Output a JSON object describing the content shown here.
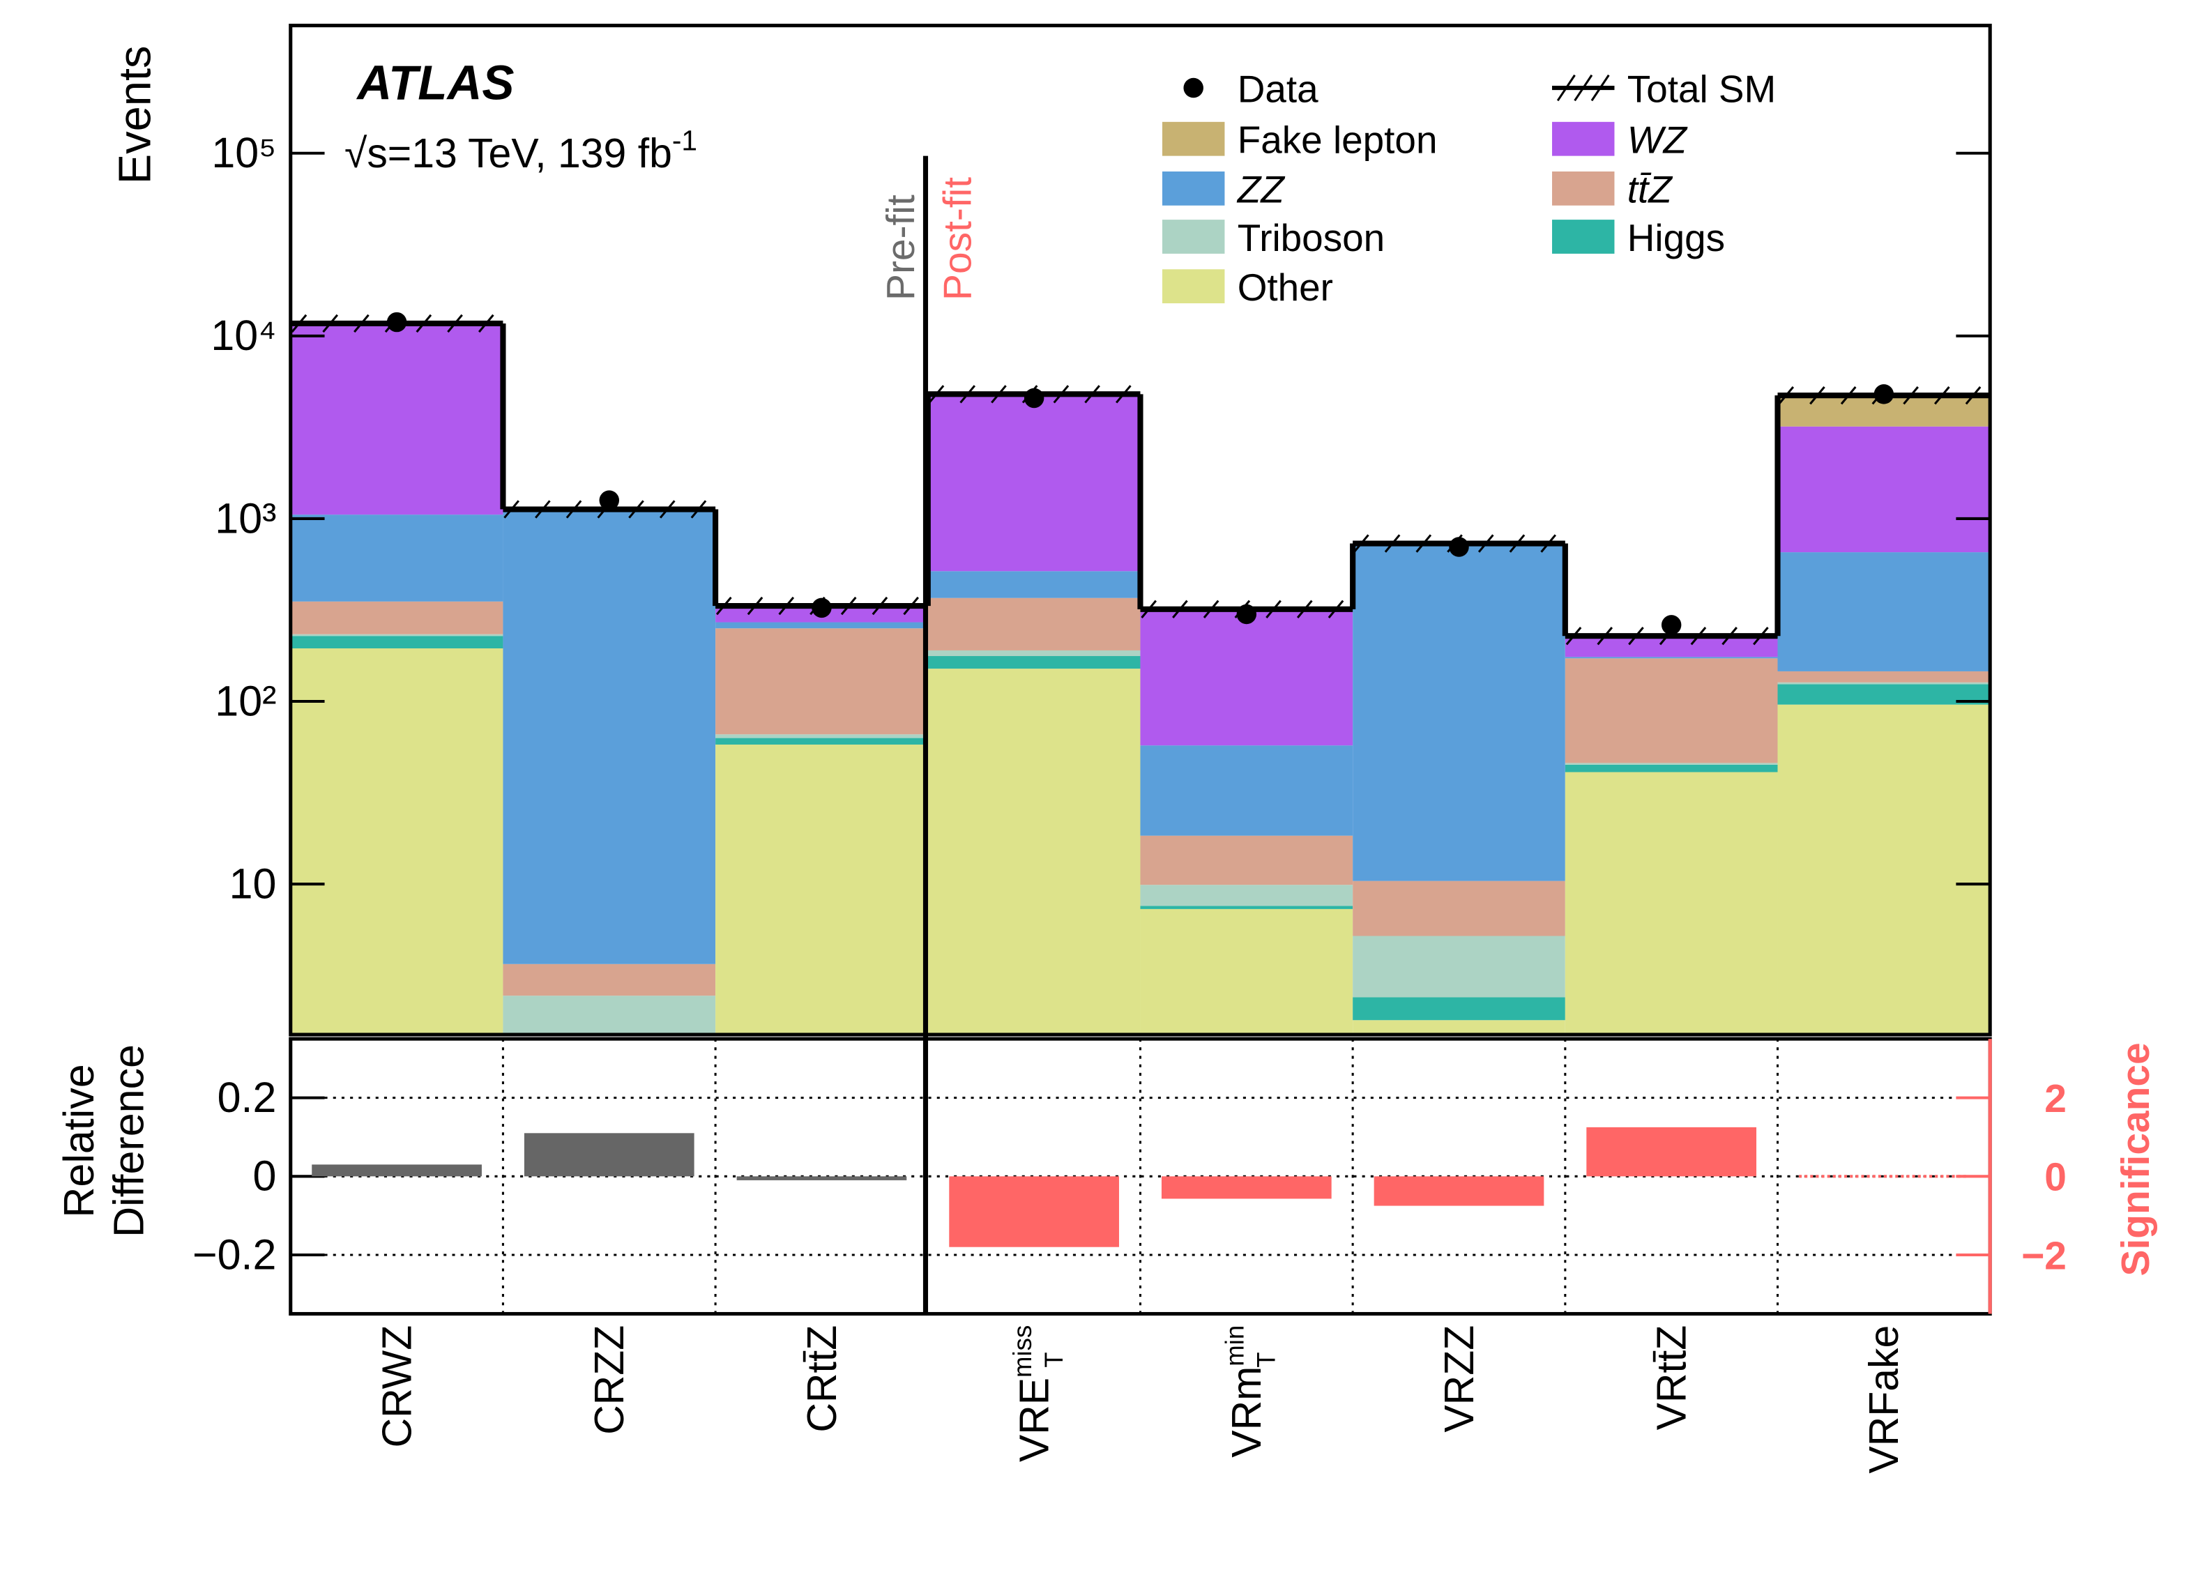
{
  "chart_data": [
    {
      "type": "stacked-histogram",
      "experiment": "ATLAS",
      "energy_label": "√s=13 TeV, 139 fb",
      "energy_label_exponent": "-1",
      "y_label": "Events",
      "prefit_label": "Pre-fit",
      "postfit_label": "Post-fit",
      "log_scale": true,
      "ylim": [
        1.5,
        500000
      ],
      "yticks": [
        10,
        {
          "value": 100,
          "label": "10²"
        },
        {
          "value": 1000,
          "label": "10³"
        },
        {
          "value": 10000,
          "label": "10⁴"
        },
        {
          "value": 100000,
          "label": "10⁵"
        }
      ],
      "categories": [
        "CRWZ",
        "CRZZ",
        "CRtt̄Z",
        {
          "text": "VRE",
          "sup": "miss",
          "sub": "T"
        },
        {
          "text": "VRm",
          "sup": "min",
          "sub": "T"
        },
        "VRZZ",
        "VRtt̄Z",
        "VRFake"
      ],
      "series": [
        {
          "name": "Other",
          "color": "#dde38b",
          "values": [
            195,
            1,
            58,
            151,
            7.3,
            1.8,
            41,
            96
          ]
        },
        {
          "name": "Higgs",
          "color": "#2db5a5",
          "values": [
            33,
            0.05,
            5,
            26,
            0.3,
            0.6,
            4,
            28
          ]
        },
        {
          "name": "Triboson",
          "color": "#acd3c4",
          "values": [
            5,
            1.4,
            3,
            13,
            2.3,
            2.8,
            1,
            3
          ]
        },
        {
          "name": "tt̄Z",
          "color": "#d8a48f",
          "values": [
            119,
            1.2,
            185,
            178,
            8.5,
            5.2,
            126,
            19
          ]
        },
        {
          "name": "ZZ",
          "color": "#5b9fda",
          "values": [
            700,
            1116,
            20,
            148,
            39,
            715,
            3,
            509
          ]
        },
        {
          "name": "WZ",
          "color": "#b05aee",
          "values": [
            10650,
            5,
            60,
            4280,
            261,
            5,
            52,
            2540
          ]
        },
        {
          "name": "Fake lepton",
          "color": "#c8b272",
          "values": [
            2,
            0.5,
            2,
            5,
            1,
            1,
            1,
            1530
          ]
        }
      ],
      "total_name": "Total SM",
      "data": {
        "name": "Data",
        "color": "#000000",
        "values": [
          11900,
          1260,
          325,
          4570,
          300,
          700,
          262,
          4800
        ]
      }
    },
    {
      "type": "bar",
      "y_label": [
        "Relative",
        "Difference"
      ],
      "y2_label": "Significance",
      "ylim": [
        -0.35,
        0.35
      ],
      "yticks": [
        {
          "value": -0.2,
          "label": "−0.2"
        },
        0,
        0.2
      ],
      "y2lim": [
        -3.5,
        3.5
      ],
      "y2ticks": [
        {
          "value": -2,
          "label": "−2"
        },
        0,
        2
      ],
      "grid": true,
      "series": [
        {
          "color": "#666666",
          "values": [
            0.03,
            0.11,
            -0.01,
            null,
            null,
            null,
            null,
            null
          ]
        },
        {
          "color": "#ff6666",
          "axis": "y2",
          "values": [
            null,
            null,
            null,
            -1.8,
            -0.57,
            -0.75,
            1.25,
            0
          ]
        }
      ]
    }
  ]
}
